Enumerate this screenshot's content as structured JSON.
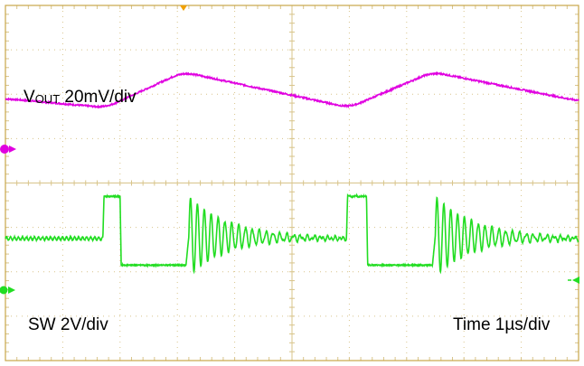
{
  "colors": {
    "frame": "#c9a64a",
    "grid": "#d8c48a",
    "background": "#ffffff",
    "vout": "#e000e0",
    "sw": "#22dd22",
    "trigger": "#f0a000",
    "label": "#000000"
  },
  "labels": {
    "vout_main": "V",
    "vout_sub": "OUT",
    "vout_scale": " 20mV/div",
    "sw": "SW 2V/div",
    "time": "Time 1µs/div"
  },
  "chart_data": {
    "type": "line",
    "title": "",
    "xlabel": "Time 1µs/div",
    "ylabel": "",
    "x_divisions": 10,
    "y_divisions": 8,
    "xlim": [
      0,
      10
    ],
    "grid": true,
    "series": [
      {
        "name": "VOUT 20mV/div",
        "color": "#e000e0",
        "unit": "div",
        "x": [
          0,
          1.75,
          3.1,
          6.0,
          7.45,
          10.0
        ],
        "y": [
          5.9,
          5.7,
          6.5,
          5.7,
          6.5,
          5.85
        ]
      },
      {
        "name": "SW 2V/div",
        "color": "#22dd22",
        "unit": "div",
        "x": [
          0,
          1.7,
          1.72,
          2.0,
          2.02,
          3.15,
          3.2,
          5.95,
          5.97,
          6.3,
          6.32,
          7.45,
          7.5,
          10.0
        ],
        "y": [
          2.75,
          2.75,
          3.7,
          3.7,
          2.15,
          2.15,
          2.8,
          2.75,
          3.7,
          3.7,
          2.15,
          2.15,
          2.8,
          2.75
        ],
        "ringing": [
          {
            "start": 3.2,
            "amplitude": 0.9,
            "period_div": 0.12,
            "decay_div": 0.7
          },
          {
            "start": 7.5,
            "amplitude": 0.9,
            "period_div": 0.12,
            "decay_div": 0.7
          }
        ]
      }
    ]
  }
}
